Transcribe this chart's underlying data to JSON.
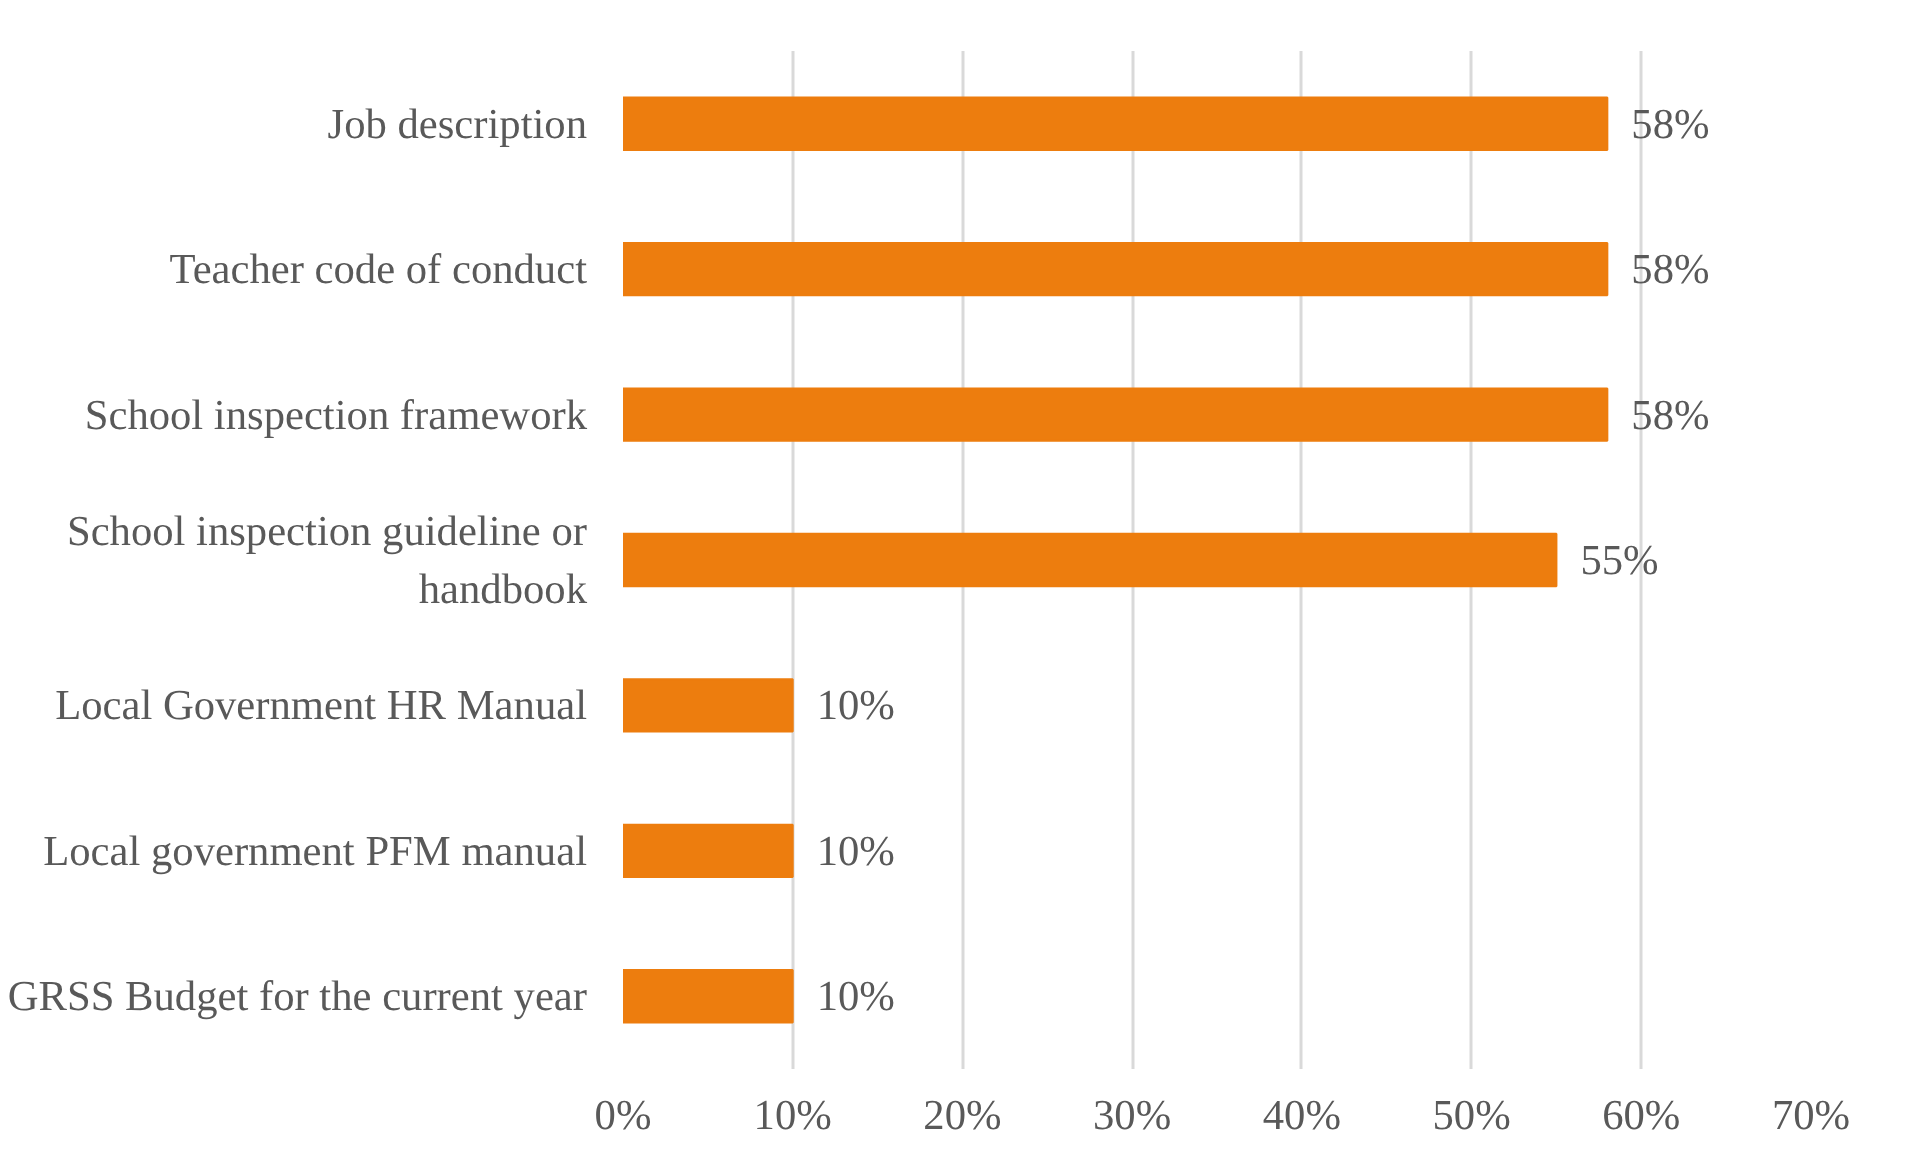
{
  "chart_data": {
    "type": "bar",
    "orientation": "horizontal",
    "categories": [
      "Job description",
      "Teacher code of conduct",
      "School inspection framework",
      "School inspection guideline or handbook",
      "Local Government HR Manual",
      "Local government PFM manual",
      "GRSS Budget for the current year"
    ],
    "values": [
      58,
      58,
      58,
      55,
      10,
      10,
      10
    ],
    "color": "#ed7d0e",
    "value_labels": [
      "58%",
      "58%",
      "58%",
      "55%",
      "10%",
      "10%",
      "10%"
    ],
    "xlim": [
      0,
      70
    ],
    "xticks": [
      {
        "value": 0,
        "label": "0%"
      },
      {
        "value": 10,
        "label": "10%"
      },
      {
        "value": 20,
        "label": "20%"
      },
      {
        "value": 30,
        "label": "30%"
      },
      {
        "value": 40,
        "label": "40%"
      },
      {
        "value": 50,
        "label": "50%"
      },
      {
        "value": 60,
        "label": "60%"
      },
      {
        "value": 70,
        "label": "70%"
      }
    ],
    "grid": "x"
  }
}
